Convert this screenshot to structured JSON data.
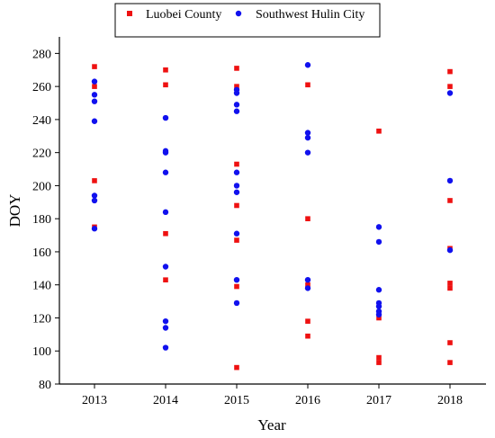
{
  "chart_data": {
    "type": "scatter",
    "title": "",
    "xlabel": "Year",
    "ylabel": "DOY",
    "categories": [
      "2013",
      "2014",
      "2015",
      "2016",
      "2017",
      "2018"
    ],
    "ylim": [
      80,
      290
    ],
    "yticks": [
      80,
      100,
      120,
      140,
      160,
      180,
      200,
      220,
      240,
      260,
      280
    ],
    "grid": false,
    "legend_position": "top",
    "series": [
      {
        "name": "Luobei County",
        "color": "#ee1111",
        "marker": "square",
        "points": [
          {
            "x": "2013",
            "y": 272
          },
          {
            "x": "2013",
            "y": 260
          },
          {
            "x": "2013",
            "y": 203
          },
          {
            "x": "2013",
            "y": 175
          },
          {
            "x": "2014",
            "y": 270
          },
          {
            "x": "2014",
            "y": 261
          },
          {
            "x": "2014",
            "y": 171
          },
          {
            "x": "2014",
            "y": 143
          },
          {
            "x": "2015",
            "y": 271
          },
          {
            "x": "2015",
            "y": 260
          },
          {
            "x": "2015",
            "y": 213
          },
          {
            "x": "2015",
            "y": 188
          },
          {
            "x": "2015",
            "y": 167
          },
          {
            "x": "2015",
            "y": 139
          },
          {
            "x": "2015",
            "y": 90
          },
          {
            "x": "2016",
            "y": 261
          },
          {
            "x": "2016",
            "y": 180
          },
          {
            "x": "2016",
            "y": 140
          },
          {
            "x": "2016",
            "y": 118
          },
          {
            "x": "2016",
            "y": 109
          },
          {
            "x": "2017",
            "y": 233
          },
          {
            "x": "2017",
            "y": 120
          },
          {
            "x": "2017",
            "y": 96
          },
          {
            "x": "2017",
            "y": 93
          },
          {
            "x": "2018",
            "y": 269
          },
          {
            "x": "2018",
            "y": 260
          },
          {
            "x": "2018",
            "y": 191
          },
          {
            "x": "2018",
            "y": 162
          },
          {
            "x": "2018",
            "y": 141
          },
          {
            "x": "2018",
            "y": 138
          },
          {
            "x": "2018",
            "y": 105
          },
          {
            "x": "2018",
            "y": 93
          }
        ]
      },
      {
        "name": "Southwest Hulin City",
        "color": "#1111ee",
        "marker": "circle",
        "points": [
          {
            "x": "2013",
            "y": 263
          },
          {
            "x": "2013",
            "y": 255
          },
          {
            "x": "2013",
            "y": 251
          },
          {
            "x": "2013",
            "y": 239
          },
          {
            "x": "2013",
            "y": 194
          },
          {
            "x": "2013",
            "y": 191
          },
          {
            "x": "2013",
            "y": 174
          },
          {
            "x": "2014",
            "y": 241
          },
          {
            "x": "2014",
            "y": 221
          },
          {
            "x": "2014",
            "y": 220
          },
          {
            "x": "2014",
            "y": 208
          },
          {
            "x": "2014",
            "y": 184
          },
          {
            "x": "2014",
            "y": 151
          },
          {
            "x": "2014",
            "y": 118
          },
          {
            "x": "2014",
            "y": 114
          },
          {
            "x": "2014",
            "y": 102
          },
          {
            "x": "2015",
            "y": 258
          },
          {
            "x": "2015",
            "y": 256
          },
          {
            "x": "2015",
            "y": 249
          },
          {
            "x": "2015",
            "y": 245
          },
          {
            "x": "2015",
            "y": 208
          },
          {
            "x": "2015",
            "y": 200
          },
          {
            "x": "2015",
            "y": 196
          },
          {
            "x": "2015",
            "y": 171
          },
          {
            "x": "2015",
            "y": 143
          },
          {
            "x": "2015",
            "y": 129
          },
          {
            "x": "2016",
            "y": 273
          },
          {
            "x": "2016",
            "y": 232
          },
          {
            "x": "2016",
            "y": 229
          },
          {
            "x": "2016",
            "y": 220
          },
          {
            "x": "2016",
            "y": 143
          },
          {
            "x": "2016",
            "y": 138
          },
          {
            "x": "2017",
            "y": 175
          },
          {
            "x": "2017",
            "y": 166
          },
          {
            "x": "2017",
            "y": 137
          },
          {
            "x": "2017",
            "y": 129
          },
          {
            "x": "2017",
            "y": 127
          },
          {
            "x": "2017",
            "y": 124
          },
          {
            "x": "2017",
            "y": 122
          },
          {
            "x": "2018",
            "y": 256
          },
          {
            "x": "2018",
            "y": 203
          },
          {
            "x": "2018",
            "y": 161
          }
        ]
      }
    ]
  }
}
